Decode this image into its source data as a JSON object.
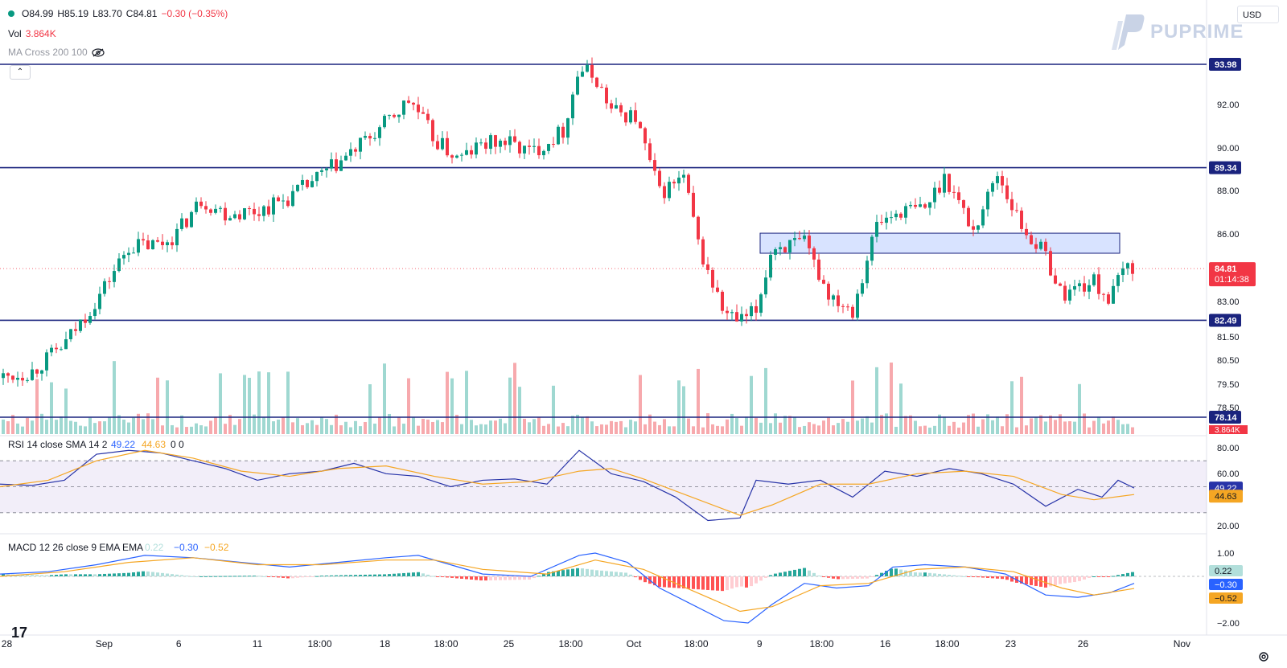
{
  "header": {
    "ohlc": {
      "o": "O84.99",
      "h": "H85.19",
      "l": "L83.70",
      "c": "C84.81",
      "chg": "−0.30 (−0.35%)"
    },
    "vol_label": "Vol",
    "vol_value": "3.864K",
    "ma_label": "MA Cross 200 100",
    "collapse_glyph": "⌃",
    "currency": "USD",
    "brand": "PUPRIME",
    "tv_logo": "17"
  },
  "chart_data": [
    {
      "type": "candlestick",
      "pane": "price",
      "y_ticks": [
        "92.00",
        "90.00",
        "88.00",
        "86.00",
        "83.00",
        "81.50",
        "80.50",
        "79.50",
        "78.50"
      ],
      "x_ticks": [
        "28",
        "Sep",
        "6",
        "11",
        "18:00",
        "18",
        "18:00",
        "25",
        "18:00",
        "Oct",
        "18:00",
        "9",
        "18:00",
        "16",
        "18:00",
        "23",
        "26",
        "Nov"
      ],
      "horizontal_levels": [
        {
          "label": "93.98",
          "value": 93.98
        },
        {
          "label": "89.34",
          "value": 89.34
        },
        {
          "label": "82.49",
          "value": 82.49
        },
        {
          "label": "78.14",
          "value": 78.14
        }
      ],
      "zone": {
        "low": 85.5,
        "high": 86.4
      },
      "last_price": {
        "label": "84.81",
        "countdown": "01:14:38",
        "value": 84.81
      },
      "volume_tag": "3.864K",
      "close_path_hint": [
        [
          0,
          79.9
        ],
        [
          40,
          80.2
        ],
        [
          80,
          81.4
        ],
        [
          120,
          83.4
        ],
        [
          160,
          85.8
        ],
        [
          200,
          85.9
        ],
        [
          220,
          86.4
        ],
        [
          250,
          87.9
        ],
        [
          280,
          87.3
        ],
        [
          320,
          87.4
        ],
        [
          360,
          88.0
        ],
        [
          400,
          89.0
        ],
        [
          430,
          89.8
        ],
        [
          470,
          91.0
        ],
        [
          510,
          92.4
        ],
        [
          540,
          90.6
        ],
        [
          570,
          89.7
        ],
        [
          600,
          90.4
        ],
        [
          630,
          90.5
        ],
        [
          660,
          90.0
        ],
        [
          700,
          91.0
        ],
        [
          720,
          93.8
        ],
        [
          740,
          93.4
        ],
        [
          760,
          91.9
        ],
        [
          790,
          91.6
        ],
        [
          820,
          88.2
        ],
        [
          850,
          88.9
        ],
        [
          870,
          85.6
        ],
        [
          900,
          82.8
        ],
        [
          920,
          82.4
        ],
        [
          940,
          82.9
        ],
        [
          960,
          85.8
        ],
        [
          1000,
          85.9
        ],
        [
          1030,
          83.7
        ],
        [
          1060,
          83.0
        ],
        [
          1090,
          86.8
        ],
        [
          1120,
          87.4
        ],
        [
          1150,
          87.5
        ],
        [
          1175,
          89.0
        ],
        [
          1210,
          86.5
        ],
        [
          1240,
          89.1
        ],
        [
          1270,
          86.7
        ],
        [
          1300,
          85.4
        ],
        [
          1320,
          83.6
        ],
        [
          1340,
          84.0
        ],
        [
          1360,
          84.2
        ],
        [
          1380,
          83.4
        ],
        [
          1400,
          85.0
        ],
        [
          1412,
          84.81
        ]
      ]
    },
    {
      "type": "line",
      "pane": "rsi",
      "legend": {
        "label": "RSI 14 close SMA 14 2",
        "rsi": "49.22",
        "sma": "44.63",
        "extra": "0 0"
      },
      "y_ticks": [
        "80.00",
        "60.00",
        "20.00"
      ],
      "bands": [
        70,
        50,
        30
      ],
      "series": [
        {
          "name": "RSI",
          "value_tag": "49.22",
          "points": [
            [
              0,
              52
            ],
            [
              40,
              51
            ],
            [
              80,
              55
            ],
            [
              120,
              75
            ],
            [
              160,
              78
            ],
            [
              200,
              76
            ],
            [
              240,
              70
            ],
            [
              280,
              64
            ],
            [
              320,
              55
            ],
            [
              360,
              60
            ],
            [
              400,
              62
            ],
            [
              440,
              68
            ],
            [
              480,
              60
            ],
            [
              520,
              58
            ],
            [
              560,
              50
            ],
            [
              600,
              55
            ],
            [
              640,
              56
            ],
            [
              680,
              52
            ],
            [
              720,
              78
            ],
            [
              760,
              60
            ],
            [
              800,
              54
            ],
            [
              840,
              42
            ],
            [
              880,
              24
            ],
            [
              920,
              26
            ],
            [
              940,
              55
            ],
            [
              980,
              52
            ],
            [
              1020,
              55
            ],
            [
              1060,
              42
            ],
            [
              1100,
              62
            ],
            [
              1140,
              58
            ],
            [
              1180,
              64
            ],
            [
              1220,
              60
            ],
            [
              1260,
              52
            ],
            [
              1300,
              35
            ],
            [
              1340,
              48
            ],
            [
              1370,
              42
            ],
            [
              1390,
              55
            ],
            [
              1410,
              49
            ]
          ]
        },
        {
          "name": "SMA",
          "value_tag": "44.63",
          "points": [
            [
              0,
              50
            ],
            [
              60,
              55
            ],
            [
              120,
              70
            ],
            [
              180,
              78
            ],
            [
              240,
              72
            ],
            [
              300,
              62
            ],
            [
              360,
              58
            ],
            [
              420,
              64
            ],
            [
              480,
              66
            ],
            [
              540,
              58
            ],
            [
              600,
              52
            ],
            [
              660,
              54
            ],
            [
              720,
              62
            ],
            [
              760,
              64
            ],
            [
              800,
              56
            ],
            [
              860,
              42
            ],
            [
              920,
              28
            ],
            [
              960,
              36
            ],
            [
              1020,
              52
            ],
            [
              1080,
              52
            ],
            [
              1140,
              60
            ],
            [
              1200,
              62
            ],
            [
              1260,
              58
            ],
            [
              1320,
              44
            ],
            [
              1360,
              40
            ],
            [
              1410,
              44
            ]
          ]
        }
      ]
    },
    {
      "type": "line",
      "pane": "macd",
      "legend": {
        "label": "MACD 12 26 close 9 EMA EMA",
        "hist": "0.22",
        "macd": "−0.30",
        "signal": "−0.52"
      },
      "y_ticks": [
        "1.00",
        "−2.00"
      ],
      "series": [
        {
          "name": "MACD",
          "value_tag": "−0.30",
          "points": [
            [
              0,
              0.1
            ],
            [
              60,
              0.2
            ],
            [
              120,
              0.5
            ],
            [
              180,
              0.9
            ],
            [
              240,
              0.8
            ],
            [
              300,
              0.6
            ],
            [
              360,
              0.4
            ],
            [
              420,
              0.6
            ],
            [
              480,
              0.8
            ],
            [
              520,
              0.9
            ],
            [
              560,
              0.5
            ],
            [
              600,
              0.1
            ],
            [
              660,
              0.0
            ],
            [
              720,
              0.9
            ],
            [
              740,
              1.0
            ],
            [
              780,
              0.6
            ],
            [
              820,
              -0.5
            ],
            [
              860,
              -1.2
            ],
            [
              900,
              -1.9
            ],
            [
              930,
              -2.0
            ],
            [
              960,
              -1.2
            ],
            [
              1000,
              -0.3
            ],
            [
              1040,
              -0.5
            ],
            [
              1080,
              -0.4
            ],
            [
              1110,
              0.4
            ],
            [
              1150,
              0.5
            ],
            [
              1200,
              0.4
            ],
            [
              1250,
              0.1
            ],
            [
              1300,
              -0.8
            ],
            [
              1340,
              -0.9
            ],
            [
              1380,
              -0.7
            ],
            [
              1410,
              -0.3
            ]
          ]
        },
        {
          "name": "Signal",
          "value_tag": "−0.52",
          "points": [
            [
              0,
              0.0
            ],
            [
              80,
              0.2
            ],
            [
              160,
              0.6
            ],
            [
              240,
              0.8
            ],
            [
              320,
              0.5
            ],
            [
              400,
              0.5
            ],
            [
              480,
              0.7
            ],
            [
              540,
              0.7
            ],
            [
              600,
              0.3
            ],
            [
              680,
              0.1
            ],
            [
              740,
              0.7
            ],
            [
              800,
              0.3
            ],
            [
              860,
              -0.6
            ],
            [
              920,
              -1.5
            ],
            [
              960,
              -1.3
            ],
            [
              1020,
              -0.4
            ],
            [
              1080,
              -0.3
            ],
            [
              1140,
              0.3
            ],
            [
              1200,
              0.4
            ],
            [
              1260,
              0.2
            ],
            [
              1320,
              -0.5
            ],
            [
              1360,
              -0.8
            ],
            [
              1410,
              -0.52
            ]
          ]
        }
      ],
      "histogram_tag": "0.22"
    }
  ]
}
